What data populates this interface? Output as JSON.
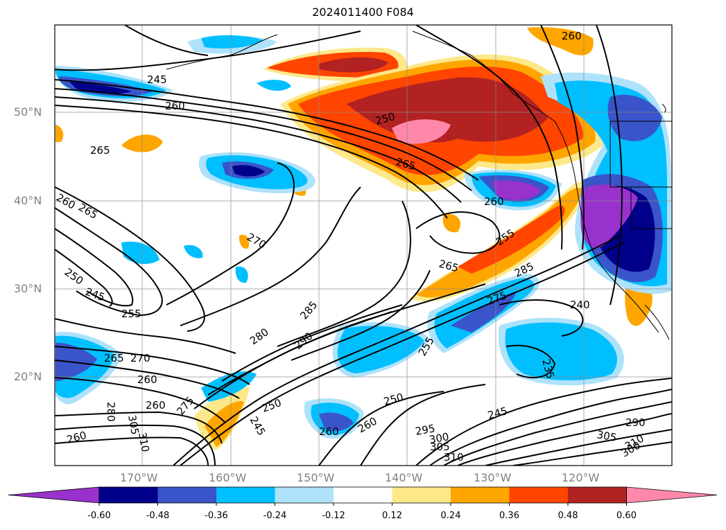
{
  "title": "2024011400 F084",
  "map": {
    "lat_labels": [
      "50°N",
      "40°N",
      "30°N",
      "20°N"
    ],
    "lon_labels": [
      "170°W",
      "160°W",
      "150°W",
      "140°W",
      "130°W",
      "120°W"
    ],
    "contour_labels": [
      {
        "text": "245"
      },
      {
        "text": "260"
      },
      {
        "text": "250"
      },
      {
        "text": "265"
      },
      {
        "text": "260"
      },
      {
        "text": "265"
      },
      {
        "text": "260"
      },
      {
        "text": "265"
      },
      {
        "text": "270"
      },
      {
        "text": "255"
      },
      {
        "text": "265"
      },
      {
        "text": "250"
      },
      {
        "text": "245"
      },
      {
        "text": "255"
      },
      {
        "text": "285"
      },
      {
        "text": "280"
      },
      {
        "text": "290"
      },
      {
        "text": "265"
      },
      {
        "text": "270"
      },
      {
        "text": "260"
      },
      {
        "text": "275"
      },
      {
        "text": "255"
      },
      {
        "text": "240"
      },
      {
        "text": "285"
      },
      {
        "text": "275"
      },
      {
        "text": "235"
      },
      {
        "text": "250"
      },
      {
        "text": "250"
      },
      {
        "text": "245"
      },
      {
        "text": "260"
      },
      {
        "text": "260"
      },
      {
        "text": "295"
      },
      {
        "text": "300"
      },
      {
        "text": "305"
      },
      {
        "text": "310"
      },
      {
        "text": "245"
      },
      {
        "text": "305"
      },
      {
        "text": "290"
      },
      {
        "text": "310"
      },
      {
        "text": "300"
      },
      {
        "text": "260"
      },
      {
        "text": "305"
      },
      {
        "text": "310"
      },
      {
        "text": "260"
      },
      {
        "text": "280"
      },
      {
        "text": "260"
      }
    ]
  },
  "colorbar": {
    "ticks": [
      "-0.60",
      "-0.48",
      "-0.36",
      "-0.24",
      "-0.12",
      "0.12",
      "0.24",
      "0.36",
      "0.48",
      "0.60"
    ],
    "colors": [
      "#9932cc",
      "#00008b",
      "#3a54c9",
      "#00bfff",
      "#aee2fa",
      "#ffffff",
      "#fde88a",
      "#ffa500",
      "#ff4500",
      "#b22222",
      "#ff88aa"
    ]
  }
}
